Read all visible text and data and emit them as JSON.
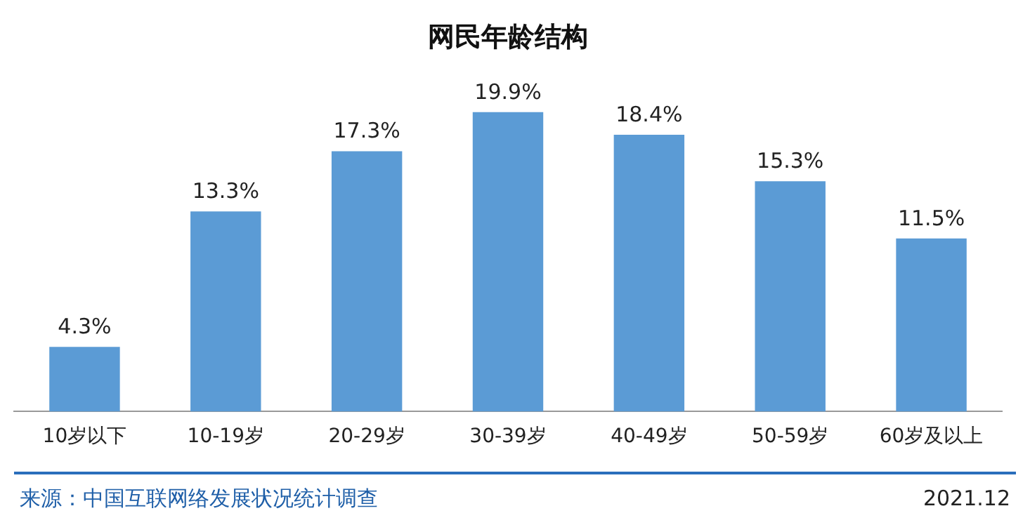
{
  "chart_data": {
    "type": "bar",
    "title": "网民年龄结构",
    "categories": [
      "10岁以下",
      "10-19岁",
      "20-29岁",
      "30-39岁",
      "40-49岁",
      "50-59岁",
      "60岁及以上"
    ],
    "values": [
      4.3,
      13.3,
      17.3,
      19.9,
      18.4,
      15.3,
      11.5
    ],
    "value_labels": [
      "4.3%",
      "13.3%",
      "17.3%",
      "19.9%",
      "18.4%",
      "15.3%",
      "11.5%"
    ],
    "color": "#5b9bd5",
    "grid": false,
    "legend": false,
    "annotations": [
      "来源：中国互联网络发展状况统计调查",
      "2021.12"
    ]
  }
}
